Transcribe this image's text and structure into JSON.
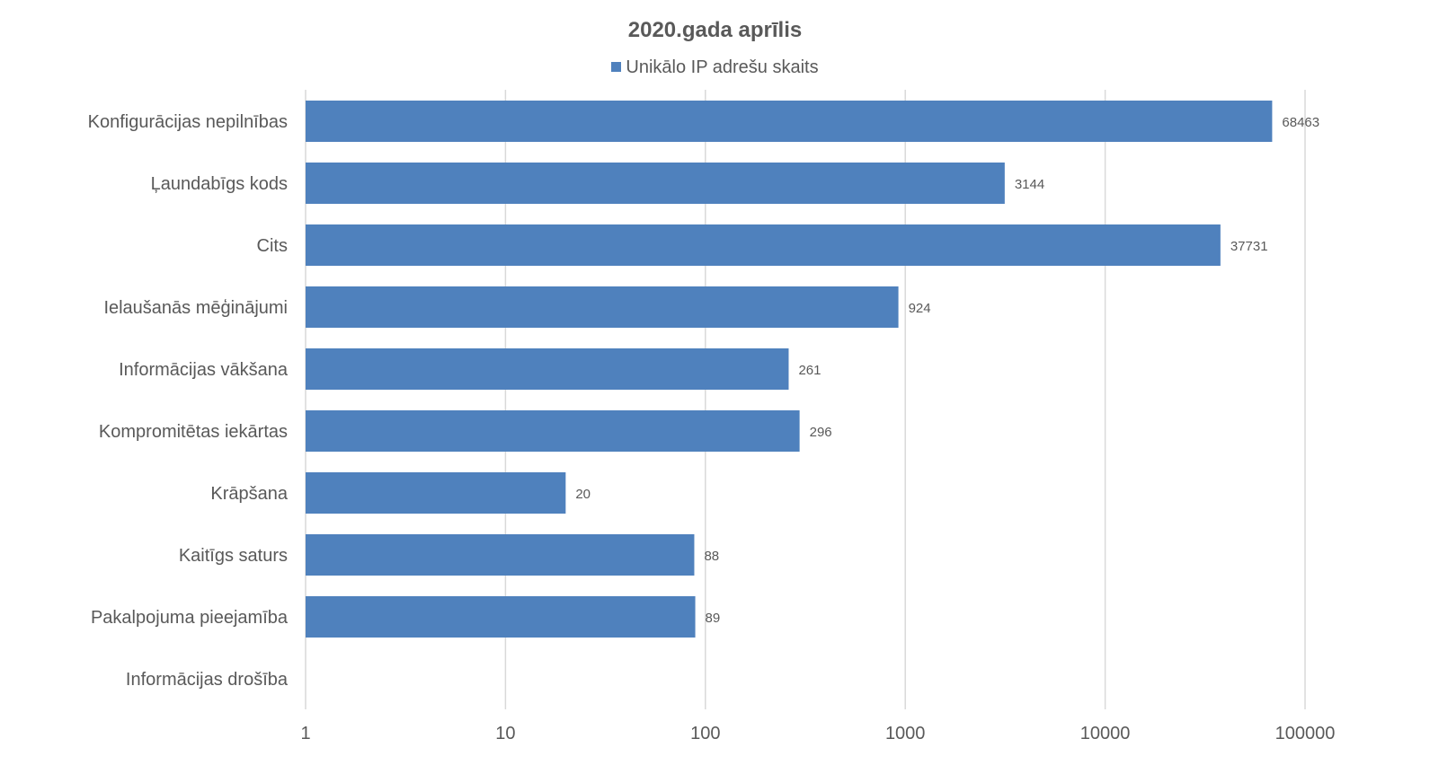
{
  "chart_data": {
    "type": "bar",
    "orientation": "horizontal",
    "title": "2020.gada aprīlis",
    "legend_position": "top",
    "x_scale": "log",
    "xlim": [
      1,
      100000
    ],
    "x_ticks": [
      "1",
      "10",
      "100",
      "1000",
      "10000",
      "100000"
    ],
    "grid": true,
    "colors": {
      "bar": "#4f81bd",
      "grid": "#d9d9d9",
      "text": "#595959"
    },
    "categories": [
      "Konfigurācijas nepilnības",
      "Ļaundabīgs kods",
      "Cits",
      "Ielaušanās mēģinājumi",
      "Informācijas vākšana",
      "Kompromitētas iekārtas",
      "Krāpšana",
      "Kaitīgs saturs",
      "Pakalpojuma pieejamība",
      "Informācijas drošība"
    ],
    "series": [
      {
        "name": "Unikālo IP adrešu skaits",
        "values": [
          68463,
          3144,
          37731,
          924,
          261,
          296,
          20,
          88,
          89,
          null
        ]
      }
    ]
  }
}
